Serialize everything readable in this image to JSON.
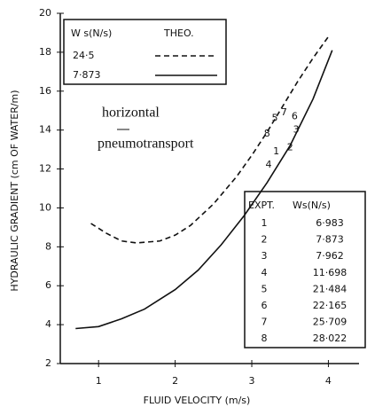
{
  "chart_data": {
    "type": "line",
    "xlabel": "FLUID VELOCITY (m/s)",
    "ylabel": "HYDRAULIC GRADIENT (cm OF WATER/m)",
    "xlim": [
      0.5,
      4.4
    ],
    "xticks": [
      1,
      2,
      3,
      4
    ],
    "ylim": [
      2,
      20
    ],
    "yticks": [
      2,
      4,
      6,
      8,
      10,
      12,
      14,
      16,
      18,
      20
    ],
    "legend_title": "W s(N/s)",
    "legend_header": "THEO.",
    "annotation": [
      "horizontal",
      "pneumotransport"
    ],
    "series": [
      {
        "name": "24·5",
        "color": "#111111",
        "dash": "dashed",
        "x": [
          0.9,
          1.1,
          1.3,
          1.5,
          1.8,
          2.0,
          2.2,
          2.5,
          2.8,
          3.0,
          3.2,
          3.4,
          3.6,
          3.8,
          4.0
        ],
        "values": [
          9.2,
          8.7,
          8.3,
          8.2,
          8.3,
          8.6,
          9.1,
          10.2,
          11.6,
          12.7,
          13.9,
          15.2,
          16.5,
          17.7,
          18.8
        ]
      },
      {
        "name": "7·873",
        "color": "#111111",
        "dash": "solid",
        "x": [
          0.7,
          1.0,
          1.3,
          1.6,
          2.0,
          2.3,
          2.6,
          2.9,
          3.2,
          3.5,
          3.8,
          4.0,
          4.05
        ],
        "values": [
          3.8,
          3.9,
          4.3,
          4.8,
          5.8,
          6.8,
          8.1,
          9.6,
          11.3,
          13.2,
          15.6,
          17.6,
          18.1
        ]
      }
    ],
    "experiments": {
      "header": [
        "EXPT.",
        "Ws(N/s)"
      ],
      "rows": [
        {
          "expt": "1",
          "ws": "6·983",
          "x": 3.32,
          "y": 12.9
        },
        {
          "expt": "2",
          "ws": "7·873",
          "x": 3.5,
          "y": 13.1
        },
        {
          "expt": "3",
          "ws": "7·962",
          "x": 3.58,
          "y": 14.0
        },
        {
          "expt": "4",
          "ws": "11·698",
          "x": 3.22,
          "y": 12.2
        },
        {
          "expt": "5",
          "ws": "21·484",
          "x": 3.3,
          "y": 14.6
        },
        {
          "expt": "6",
          "ws": "22·165",
          "x": 3.56,
          "y": 14.7
        },
        {
          "expt": "7",
          "ws": "25·709",
          "x": 3.42,
          "y": 14.9
        },
        {
          "expt": "8",
          "ws": "28·022",
          "x": 3.2,
          "y": 13.8
        }
      ]
    }
  }
}
